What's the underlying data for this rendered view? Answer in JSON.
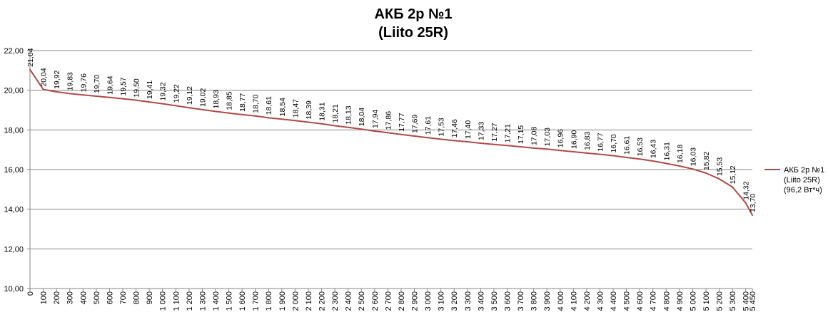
{
  "chart_data": {
    "type": "line",
    "title_lines": [
      "АКБ 2р №1",
      "(Liito 25R)"
    ],
    "xlabel": "",
    "ylabel": "",
    "ylim": [
      10,
      22
    ],
    "y_ticks": [
      "10,00",
      "12,00",
      "14,00",
      "16,00",
      "18,00",
      "20,00",
      "22,00"
    ],
    "grid": true,
    "legend_position": "right",
    "legend_lines": [
      "АКБ 2р №1",
      "(Liito 25R)",
      "(96,2 Вт*ч)"
    ],
    "line_color": "#b04a47",
    "x_tick_labels": [
      "0",
      "100",
      "200",
      "300",
      "400",
      "500",
      "600",
      "700",
      "800",
      "900",
      "1 000",
      "1 100",
      "1 200",
      "1 300",
      "1 400",
      "1 500",
      "1 600",
      "1 700",
      "1 800",
      "1 900",
      "2 000",
      "2 100",
      "2 200",
      "2 300",
      "2 400",
      "2 500",
      "2 600",
      "2 700",
      "2 800",
      "2 900",
      "3 000",
      "3 100",
      "3 200",
      "3 300",
      "3 400",
      "3 500",
      "3 600",
      "3 700",
      "3 800",
      "3 900",
      "4 000",
      "4 100",
      "4 200",
      "4 300",
      "4 400",
      "4 500",
      "4 600",
      "4 700",
      "4 800",
      "4 900",
      "5 000",
      "5 100",
      "5 200",
      "5 300",
      "5 400",
      "5 450"
    ],
    "x_values": [
      0,
      100,
      200,
      300,
      400,
      500,
      600,
      700,
      800,
      900,
      1000,
      1100,
      1200,
      1300,
      1400,
      1500,
      1600,
      1700,
      1800,
      1900,
      2000,
      2100,
      2200,
      2300,
      2400,
      2500,
      2600,
      2700,
      2800,
      2900,
      3000,
      3100,
      3200,
      3300,
      3400,
      3500,
      3600,
      3700,
      3800,
      3900,
      4000,
      4100,
      4200,
      4300,
      4400,
      4500,
      4600,
      4700,
      4800,
      4900,
      5000,
      5100,
      5200,
      5300,
      5400,
      5450
    ],
    "series": [
      {
        "name": "АКБ 2р №1 (Liito 25R) (96,2 Вт*ч)",
        "values": [
          21.04,
          20.04,
          19.92,
          19.83,
          19.76,
          19.7,
          19.64,
          19.57,
          19.5,
          19.41,
          19.32,
          19.22,
          19.12,
          19.02,
          18.93,
          18.85,
          18.77,
          18.7,
          18.61,
          18.54,
          18.47,
          18.39,
          18.31,
          18.21,
          18.13,
          18.04,
          17.94,
          17.86,
          17.77,
          17.69,
          17.61,
          17.53,
          17.46,
          17.4,
          17.33,
          17.27,
          17.21,
          17.15,
          17.08,
          17.03,
          16.96,
          16.9,
          16.83,
          16.77,
          16.7,
          16.61,
          16.53,
          16.43,
          16.31,
          16.18,
          16.03,
          15.82,
          15.53,
          15.12,
          14.32,
          13.7
        ],
        "labels": [
          "21,04",
          "20,04",
          "19,92",
          "19,83",
          "19,76",
          "19,70",
          "19,64",
          "19,57",
          "19,50",
          "19,41",
          "19,32",
          "19,22",
          "19,12",
          "19,02",
          "18,93",
          "18,85",
          "18,77",
          "18,70",
          "18,61",
          "18,54",
          "18,47",
          "18,39",
          "18,31",
          "18,21",
          "18,13",
          "18,04",
          "17,94",
          "17,86",
          "17,77",
          "17,69",
          "17,61",
          "17,53",
          "17,46",
          "17,40",
          "17,33",
          "17,27",
          "17,21",
          "17,15",
          "17,08",
          "17,03",
          "16,96",
          "16,90",
          "16,83",
          "16,77",
          "16,70",
          "16,61",
          "16,53",
          "16,43",
          "16,31",
          "16,18",
          "16,03",
          "15,82",
          "15,53",
          "15,12",
          "14,32",
          "13,70"
        ]
      }
    ]
  }
}
